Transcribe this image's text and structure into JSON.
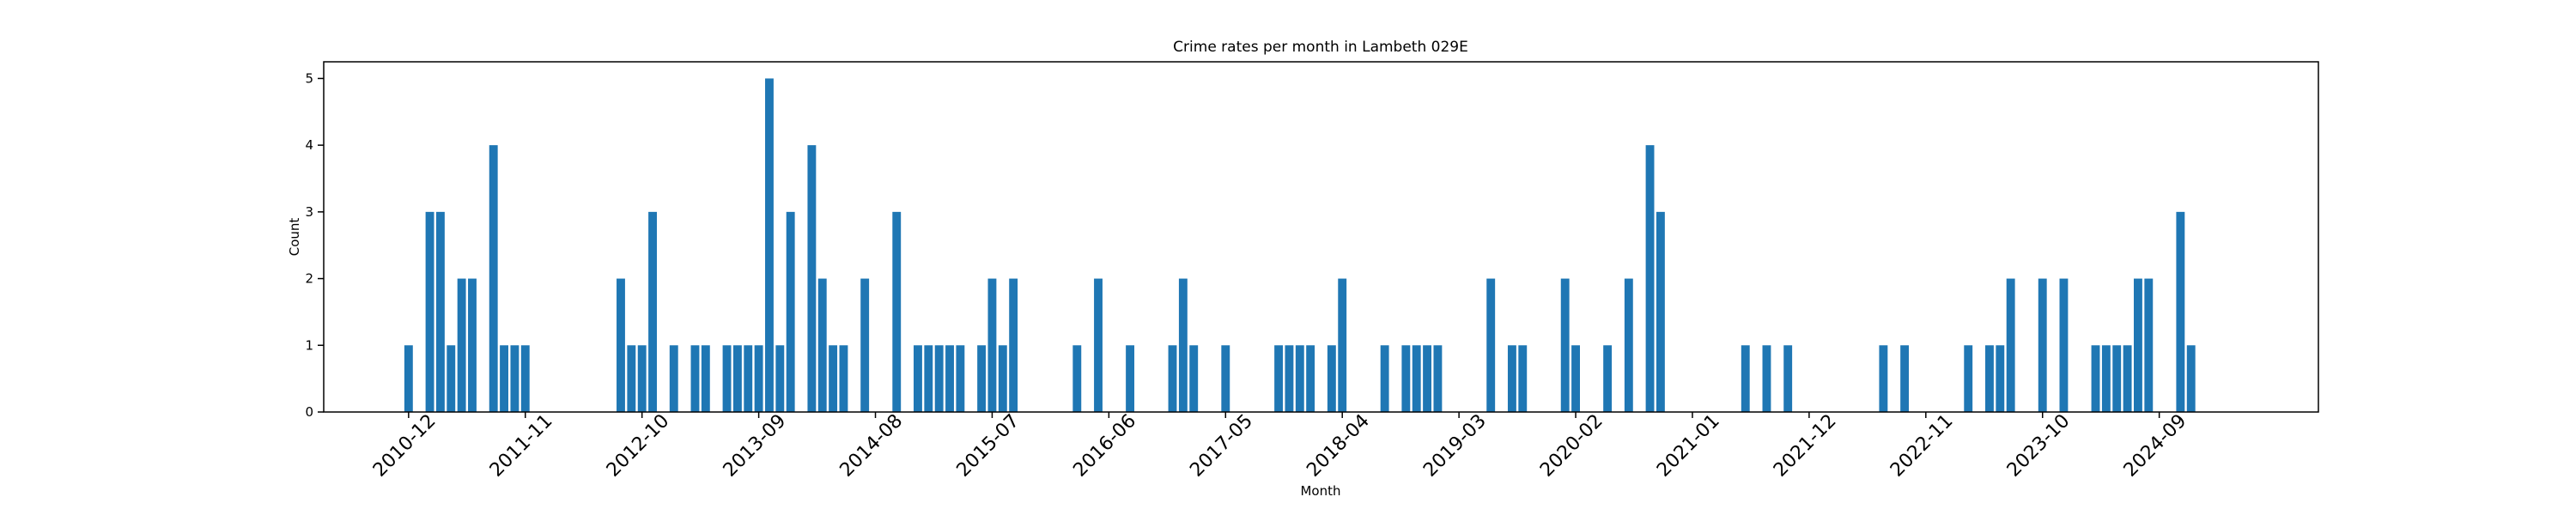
{
  "chart_data": {
    "type": "bar",
    "title": "Crime rates per month in Lambeth 029E",
    "x_label": "Month",
    "y_label": "Count",
    "x": [
      "2010-12",
      "2011-02",
      "2011-03",
      "2011-04",
      "2011-05",
      "2011-06",
      "2011-08",
      "2011-09",
      "2011-10",
      "2011-11",
      "2012-08",
      "2012-09",
      "2012-10",
      "2012-11",
      "2013-01",
      "2013-03",
      "2013-04",
      "2013-06",
      "2013-07",
      "2013-08",
      "2013-09",
      "2013-10",
      "2013-11",
      "2013-12",
      "2014-02",
      "2014-03",
      "2014-04",
      "2014-05",
      "2014-07",
      "2014-10",
      "2014-12",
      "2015-01",
      "2015-02",
      "2015-03",
      "2015-04",
      "2015-06",
      "2015-07",
      "2015-08",
      "2015-09",
      "2016-03",
      "2016-05",
      "2016-08",
      "2016-12",
      "2017-01",
      "2017-02",
      "2017-05",
      "2017-10",
      "2017-11",
      "2017-12",
      "2018-01",
      "2018-03",
      "2018-04",
      "2018-08",
      "2018-10",
      "2018-11",
      "2018-12",
      "2019-01",
      "2019-06",
      "2019-08",
      "2019-09",
      "2020-01",
      "2020-02",
      "2020-05",
      "2020-07",
      "2020-09",
      "2020-10",
      "2021-06",
      "2021-08",
      "2021-10",
      "2022-07",
      "2022-09",
      "2023-03",
      "2023-05",
      "2023-06",
      "2023-07",
      "2023-10",
      "2023-12",
      "2024-03",
      "2024-04",
      "2024-05",
      "2024-06",
      "2024-07",
      "2024-08",
      "2024-11",
      "2024-12"
    ],
    "values": [
      1,
      3,
      3,
      1,
      2,
      2,
      4,
      1,
      1,
      1,
      2,
      1,
      1,
      3,
      1,
      1,
      1,
      1,
      1,
      1,
      1,
      5,
      1,
      3,
      4,
      2,
      1,
      1,
      2,
      3,
      1,
      1,
      1,
      1,
      1,
      1,
      2,
      1,
      2,
      1,
      2,
      1,
      1,
      2,
      1,
      1,
      1,
      1,
      1,
      1,
      1,
      2,
      1,
      1,
      1,
      1,
      1,
      2,
      1,
      1,
      2,
      1,
      1,
      2,
      4,
      3,
      1,
      1,
      1,
      1,
      1,
      1,
      1,
      1,
      2,
      2,
      2,
      1,
      1,
      1,
      1,
      2,
      2,
      3,
      1
    ],
    "color": "#1f77b4",
    "xlim": [
      "2010-04",
      "2025-12"
    ],
    "xticks": [
      "2010-12",
      "2011-11",
      "2012-10",
      "2013-09",
      "2014-08",
      "2015-07",
      "2016-06",
      "2017-05",
      "2018-04",
      "2019-03",
      "2020-02",
      "2021-01",
      "2021-12",
      "2022-11",
      "2023-10",
      "2024-09"
    ],
    "ylim": [
      0,
      5.25
    ],
    "yticks": [
      0,
      1,
      2,
      3,
      4,
      5
    ]
  }
}
